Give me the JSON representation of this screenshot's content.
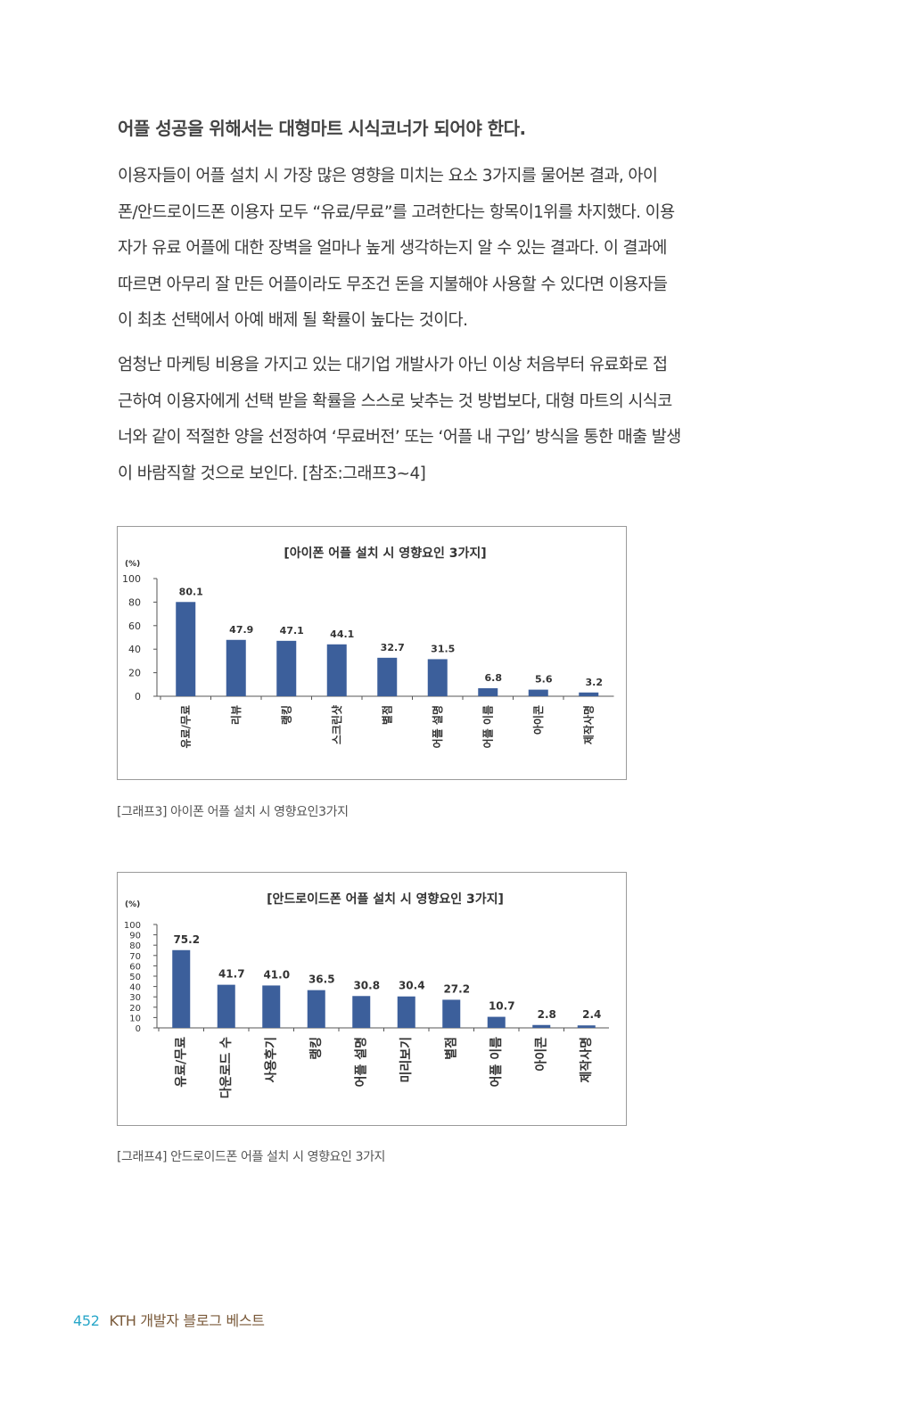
{
  "heading": "어플 성공을 위해서는 대형마트 시식코너가 되어야 한다.",
  "paragraph1": [
    "이용자들이 어플 설치 시 가장 많은 영향을 미치는 요소 3가지를 물어본 결과, 아이",
    "폰/안드로이드폰 이용자 모두 “유료/무료”를 고려한다는 항목이1위를 차지했다. 이용",
    "자가 유료 어플에 대한 장벽을 얼마나 높게 생각하는지 알 수 있는 결과다. 이 결과에",
    "따르면 아무리 잘 만든 어플이라도 무조건 돈을 지불해야 사용할 수 있다면 이용자들",
    "이 최초 선택에서 아예 배제 될 확률이 높다는 것이다."
  ],
  "paragraph2": [
    "엄청난 마케팅 비용을 가지고 있는 대기업 개발사가 아닌 이상 처음부터 유료화로 접",
    "근하여 이용자에게 선택 받을 확률을 스스로 낮추는 것 방법보다, 대형 마트의 시식코",
    "너와 같이 적절한 양을 선정하여 ‘무료버전’ 또는 ‘어플 내 구입’ 방식을 통한 매출 발생",
    "이 바람직할 것으로 보인다. [참조:그래프3~4]"
  ],
  "chart_data": [
    {
      "type": "bar",
      "title": "[아이폰 어플 설치 시 영향요인 3가지]",
      "ylabel": "(%)",
      "ylim": [
        0,
        100
      ],
      "yticks": [
        0,
        20,
        40,
        60,
        80,
        100
      ],
      "categories": [
        "유료/무료",
        "리뷰",
        "랭킹",
        "스크린샷",
        "별점",
        "어플 설명",
        "어플 이름",
        "아이콘",
        "제작사명"
      ],
      "values": [
        80.1,
        47.9,
        47.1,
        44.1,
        32.7,
        31.5,
        6.8,
        5.6,
        3.2
      ],
      "value_labels": [
        "80.1",
        "47.9",
        "47.1",
        "44.1",
        "32.7",
        "31.5",
        "6.8",
        "5.6",
        "3.2"
      ],
      "bar_color": "#3c5f9b",
      "legend": "none",
      "grid": false
    },
    {
      "type": "bar",
      "title": "[안드로이드폰 어플 설치 시 영향요인 3가지]",
      "ylabel": "(%)",
      "ylim": [
        0,
        100
      ],
      "yticks": [
        0,
        10,
        20,
        30,
        40,
        50,
        60,
        70,
        80,
        90,
        100
      ],
      "categories": [
        "유료/무료",
        "다운로드 수",
        "사용후기",
        "랭킹",
        "어플 설명",
        "미리보기",
        "별점",
        "어플 이름",
        "아이콘",
        "제작사명"
      ],
      "values": [
        75.2,
        41.7,
        41.0,
        36.5,
        30.8,
        30.4,
        27.2,
        10.7,
        2.8,
        2.4
      ],
      "value_labels": [
        "75.2",
        "41.7",
        "41.0",
        "36.5",
        "30.8",
        "30.4",
        "27.2",
        "10.7",
        "2.8",
        "2.4"
      ],
      "bar_color": "#3c5f9b",
      "legend": "none",
      "grid": false
    }
  ],
  "captions": [
    "[그래프3] 아이폰 어플 설치 시 영향요인3가지",
    "[그래프4] 안드로이드폰 어플 설치 시 영향요인 3가지"
  ],
  "footer": {
    "page_number": "452",
    "book_title": "KTH 개발자 블로그 베스트"
  }
}
